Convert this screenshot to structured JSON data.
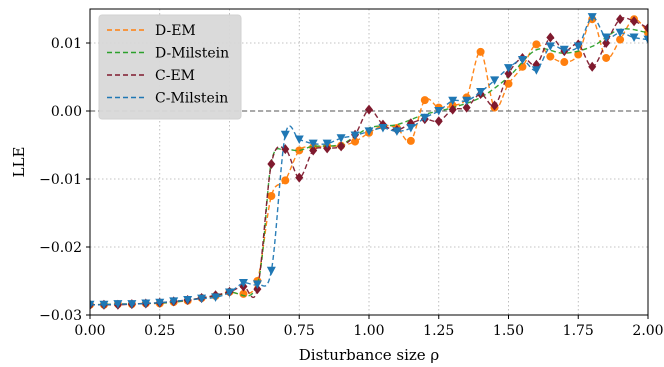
{
  "chart_data": {
    "type": "line",
    "xlabel": "Disturbance size ρ",
    "ylabel": "LLE",
    "xlim": [
      0.0,
      2.0
    ],
    "ylim": [
      -0.03,
      0.015
    ],
    "xticks": [
      0.0,
      0.25,
      0.5,
      0.75,
      1.0,
      1.25,
      1.5,
      1.75,
      2.0
    ],
    "xtick_labels": [
      "0.00",
      "0.25",
      "0.50",
      "0.75",
      "1.00",
      "1.25",
      "1.50",
      "1.75",
      "2.00"
    ],
    "yticks": [
      -0.03,
      -0.02,
      -0.01,
      0.0,
      0.01
    ],
    "ytick_labels": [
      "−0.03",
      "−0.02",
      "−0.01",
      "0.00",
      "0.01"
    ],
    "grid": true,
    "reference_line_y": 0.0,
    "legend": {
      "placement": "top-left"
    },
    "series": [
      {
        "name": "D-EM",
        "color": "#ff7f0e",
        "marker": "circle",
        "points": [
          [
            0.0,
            -0.0285
          ],
          [
            0.05,
            -0.0285
          ],
          [
            0.1,
            -0.0284
          ],
          [
            0.15,
            -0.0284
          ],
          [
            0.2,
            -0.0283
          ],
          [
            0.25,
            -0.0283
          ],
          [
            0.3,
            -0.0281
          ],
          [
            0.35,
            -0.0279
          ],
          [
            0.4,
            -0.0275
          ],
          [
            0.45,
            -0.0272
          ],
          [
            0.5,
            -0.0266
          ],
          [
            0.55,
            -0.0269
          ],
          [
            0.6,
            -0.025
          ],
          [
            0.65,
            -0.0125
          ],
          [
            0.7,
            -0.0102
          ],
          [
            0.75,
            -0.0058
          ],
          [
            0.8,
            -0.0053
          ],
          [
            0.85,
            -0.0052
          ],
          [
            0.9,
            -0.0051
          ],
          [
            0.95,
            -0.0045
          ],
          [
            1.0,
            -0.0032
          ],
          [
            1.05,
            -0.0022
          ],
          [
            1.1,
            -0.0025
          ],
          [
            1.15,
            -0.0044
          ],
          [
            1.2,
            0.0016
          ],
          [
            1.25,
            0.0005
          ],
          [
            1.3,
            0.0008
          ],
          [
            1.35,
            0.002
          ],
          [
            1.4,
            0.0087
          ],
          [
            1.45,
            0.0005
          ],
          [
            1.5,
            0.004
          ],
          [
            1.55,
            0.0065
          ],
          [
            1.6,
            0.0098
          ],
          [
            1.65,
            0.008
          ],
          [
            1.7,
            0.0072
          ],
          [
            1.75,
            0.0083
          ],
          [
            1.8,
            0.0135
          ],
          [
            1.85,
            0.0078
          ],
          [
            1.9,
            0.0105
          ],
          [
            1.95,
            0.0135
          ],
          [
            2.0,
            0.0115
          ]
        ]
      },
      {
        "name": "D-Milstein",
        "color": "#2ca02c",
        "marker": "none",
        "points": [
          [
            0.0,
            -0.0285
          ],
          [
            0.1,
            -0.0284
          ],
          [
            0.2,
            -0.0283
          ],
          [
            0.3,
            -0.0281
          ],
          [
            0.4,
            -0.0275
          ],
          [
            0.5,
            -0.0267
          ],
          [
            0.6,
            -0.0255
          ],
          [
            0.65,
            -0.0075
          ],
          [
            0.7,
            -0.0058
          ],
          [
            0.75,
            -0.0058
          ],
          [
            0.8,
            -0.0052
          ],
          [
            0.9,
            -0.0049
          ],
          [
            1.0,
            -0.0025
          ],
          [
            1.1,
            -0.002
          ],
          [
            1.2,
            -0.0005
          ],
          [
            1.3,
            0.0005
          ],
          [
            1.4,
            0.002
          ],
          [
            1.5,
            0.005
          ],
          [
            1.6,
            0.009
          ],
          [
            1.7,
            0.0085
          ],
          [
            1.8,
            0.0095
          ],
          [
            1.9,
            0.012
          ],
          [
            2.0,
            0.0115
          ]
        ]
      },
      {
        "name": "C-EM",
        "color": "#7f1a2e",
        "marker": "diamond",
        "points": [
          [
            0.0,
            -0.0285
          ],
          [
            0.05,
            -0.0285
          ],
          [
            0.1,
            -0.0285
          ],
          [
            0.15,
            -0.0284
          ],
          [
            0.2,
            -0.0283
          ],
          [
            0.25,
            -0.0282
          ],
          [
            0.3,
            -0.028
          ],
          [
            0.35,
            -0.0278
          ],
          [
            0.4,
            -0.0275
          ],
          [
            0.45,
            -0.0271
          ],
          [
            0.5,
            -0.0266
          ],
          [
            0.55,
            -0.0258
          ],
          [
            0.6,
            -0.0262
          ],
          [
            0.65,
            -0.0078
          ],
          [
            0.7,
            -0.0056
          ],
          [
            0.75,
            -0.0098
          ],
          [
            0.8,
            -0.0058
          ],
          [
            0.85,
            -0.0055
          ],
          [
            0.9,
            -0.0052
          ],
          [
            0.95,
            -0.0035
          ],
          [
            1.0,
            0.0002
          ],
          [
            1.05,
            -0.002
          ],
          [
            1.1,
            -0.0028
          ],
          [
            1.15,
            -0.0018
          ],
          [
            1.2,
            -0.0012
          ],
          [
            1.25,
            -0.0015
          ],
          [
            1.3,
            0.0002
          ],
          [
            1.35,
            0.0005
          ],
          [
            1.4,
            0.0025
          ],
          [
            1.45,
            0.0008
          ],
          [
            1.5,
            0.0055
          ],
          [
            1.55,
            0.0078
          ],
          [
            1.6,
            0.0068
          ],
          [
            1.65,
            0.0108
          ],
          [
            1.7,
            0.0088
          ],
          [
            1.75,
            0.0098
          ],
          [
            1.8,
            0.0065
          ],
          [
            1.85,
            0.01
          ],
          [
            1.9,
            0.0135
          ],
          [
            1.95,
            0.0132
          ],
          [
            2.0,
            0.0122
          ]
        ]
      },
      {
        "name": "C-Milstein",
        "color": "#1f77b4",
        "marker": "triangle-down",
        "points": [
          [
            0.0,
            -0.0285
          ],
          [
            0.05,
            -0.0285
          ],
          [
            0.1,
            -0.0284
          ],
          [
            0.15,
            -0.0284
          ],
          [
            0.2,
            -0.0283
          ],
          [
            0.25,
            -0.0282
          ],
          [
            0.3,
            -0.028
          ],
          [
            0.35,
            -0.0278
          ],
          [
            0.4,
            -0.0276
          ],
          [
            0.45,
            -0.0274
          ],
          [
            0.5,
            -0.0267
          ],
          [
            0.55,
            -0.0253
          ],
          [
            0.6,
            -0.0255
          ],
          [
            0.65,
            -0.0235
          ],
          [
            0.7,
            -0.0035
          ],
          [
            0.75,
            -0.0042
          ],
          [
            0.8,
            -0.0048
          ],
          [
            0.85,
            -0.0048
          ],
          [
            0.9,
            -0.004
          ],
          [
            0.95,
            -0.0036
          ],
          [
            1.0,
            -0.003
          ],
          [
            1.05,
            -0.0025
          ],
          [
            1.1,
            -0.003
          ],
          [
            1.15,
            -0.0025
          ],
          [
            1.2,
            -0.001
          ],
          [
            1.25,
            0.0
          ],
          [
            1.3,
            0.0015
          ],
          [
            1.35,
            0.0015
          ],
          [
            1.4,
            0.0028
          ],
          [
            1.45,
            0.0045
          ],
          [
            1.5,
            0.0063
          ],
          [
            1.55,
            0.0075
          ],
          [
            1.6,
            0.006
          ],
          [
            1.65,
            0.0095
          ],
          [
            1.7,
            0.009
          ],
          [
            1.75,
            0.0095
          ],
          [
            1.8,
            0.0138
          ],
          [
            1.85,
            0.0108
          ],
          [
            1.9,
            0.0115
          ],
          [
            1.95,
            0.0108
          ],
          [
            2.0,
            0.0105
          ]
        ]
      }
    ]
  }
}
